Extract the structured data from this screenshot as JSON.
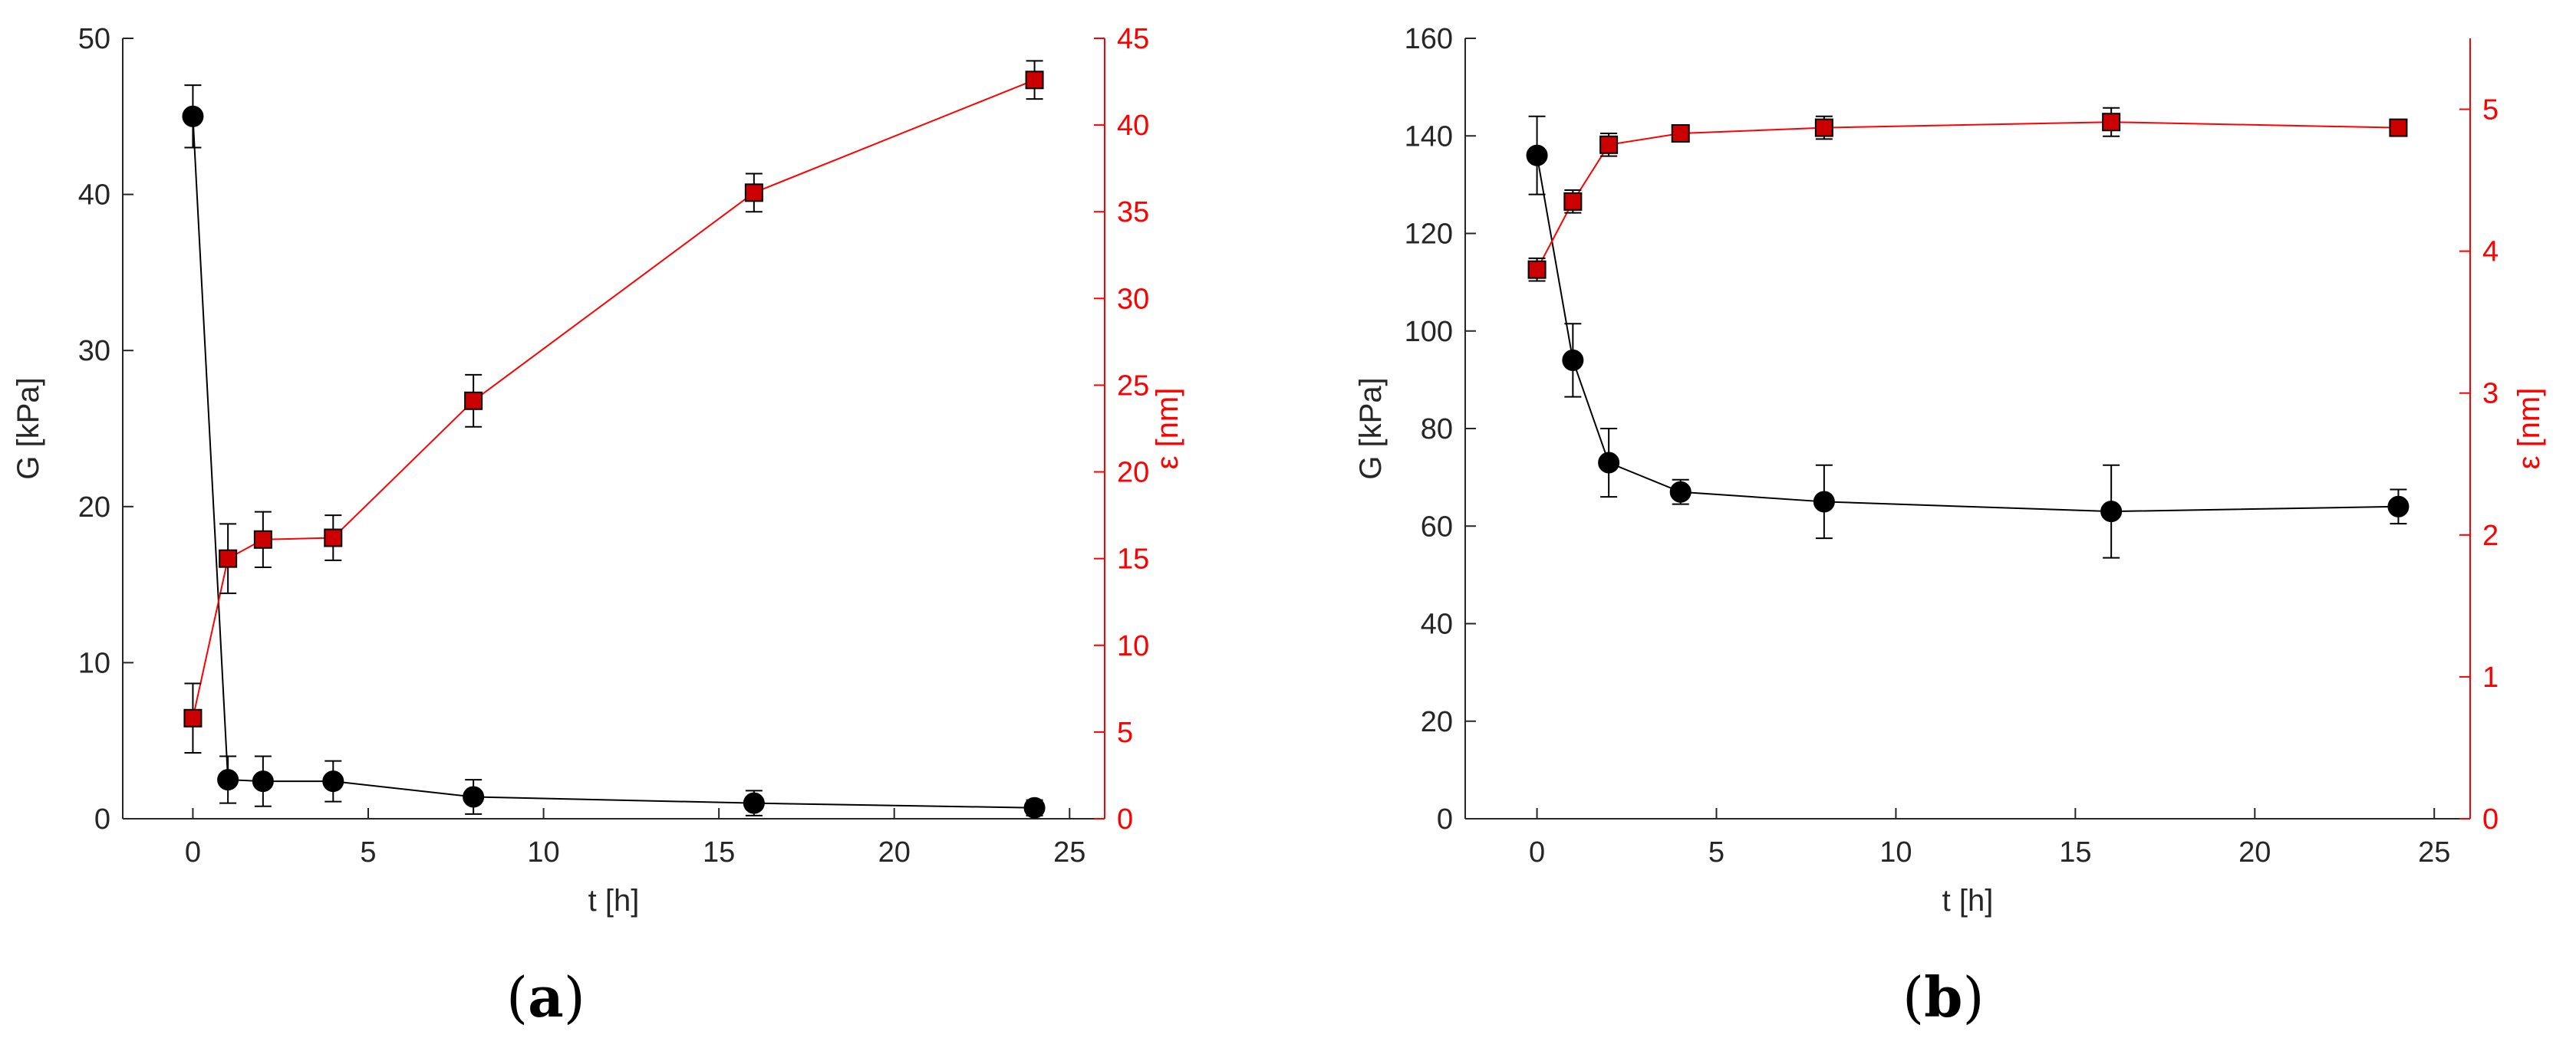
{
  "panel_labels": {
    "a": {
      "open": "(",
      "letter": "a",
      "close": ")"
    },
    "b": {
      "open": "(",
      "letter": "b",
      "close": ")"
    }
  },
  "colors": {
    "G_series": "#000000",
    "epsilon_series": "#ff0000",
    "epsilon_marker": "#cc0000",
    "axis": "#262626"
  },
  "chart_data": [
    {
      "type": "line",
      "panel": "a",
      "xlabel": "t [h]",
      "ylabel": "G [kPa]",
      "y2label": "ε [nm]",
      "xlim": [
        -2,
        26
      ],
      "xticks": [
        0,
        5,
        10,
        15,
        20,
        25
      ],
      "ylim": [
        0,
        50
      ],
      "yticks": [
        0,
        10,
        20,
        30,
        40,
        50
      ],
      "y2lim": [
        0,
        45
      ],
      "y2ticks": [
        0,
        5,
        10,
        15,
        20,
        25,
        30,
        35,
        40,
        45
      ],
      "grid": false,
      "x": [
        0,
        1,
        2,
        4,
        8,
        16,
        24
      ],
      "series": [
        {
          "axis": "left",
          "marker": "circle",
          "color": "#000000",
          "values": [
            45.0,
            2.5,
            2.4,
            2.4,
            1.4,
            1.0,
            0.7
          ],
          "errors": [
            2.0,
            1.5,
            1.6,
            1.3,
            1.1,
            0.8,
            0.5
          ]
        },
        {
          "axis": "right",
          "marker": "square",
          "color": "#ff0000",
          "values": [
            5.8,
            15.0,
            16.1,
            16.2,
            24.1,
            36.1,
            42.6
          ],
          "errors": [
            2.0,
            2.0,
            1.6,
            1.3,
            1.5,
            1.1,
            1.1
          ]
        }
      ]
    },
    {
      "type": "line",
      "panel": "b",
      "xlabel": "t [h]",
      "ylabel": "G [kPa]",
      "y2label": "ε [nm]",
      "xlim": [
        -2,
        26
      ],
      "xticks": [
        0,
        5,
        10,
        15,
        20,
        25
      ],
      "ylim": [
        0,
        160
      ],
      "yticks": [
        0,
        20,
        40,
        60,
        80,
        100,
        120,
        140,
        160
      ],
      "y2lim": [
        0,
        5.5
      ],
      "y2ticks": [
        0,
        1,
        2,
        3,
        4,
        5
      ],
      "grid": false,
      "x": [
        0,
        1,
        2,
        4,
        8,
        16,
        24
      ],
      "series": [
        {
          "axis": "left",
          "marker": "circle",
          "color": "#000000",
          "values": [
            136,
            94,
            73,
            67,
            65,
            63,
            64
          ],
          "errors": [
            8,
            7.5,
            7,
            2.5,
            7.5,
            9.5,
            3.5
          ]
        },
        {
          "axis": "right",
          "marker": "square",
          "color": "#ff0000",
          "values": [
            3.87,
            4.35,
            4.75,
            4.83,
            4.87,
            4.91,
            4.87
          ],
          "errors": [
            0.08,
            0.08,
            0.08,
            0.04,
            0.08,
            0.1,
            0.04
          ]
        }
      ]
    }
  ]
}
